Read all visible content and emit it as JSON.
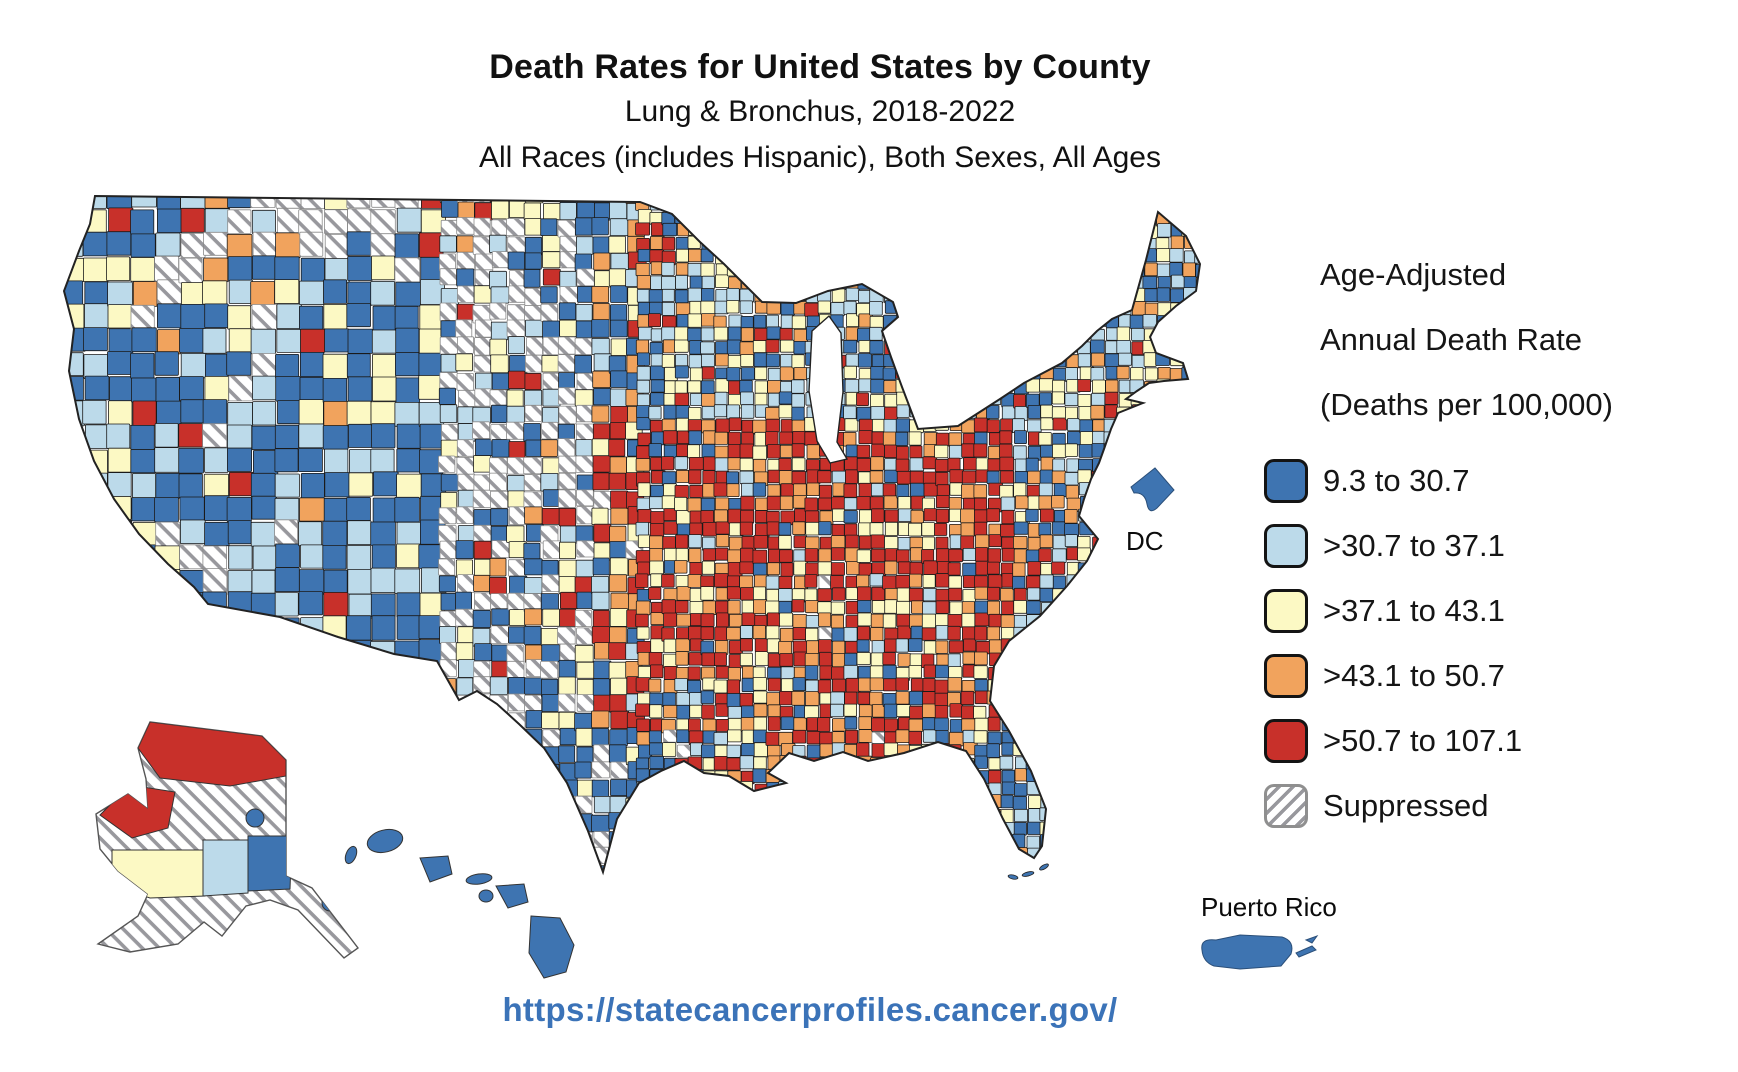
{
  "title": "Death Rates for United States by County",
  "subtitle1": "Lung & Bronchus, 2018-2022",
  "subtitle2": "All Races (includes Hispanic), Both Sexes, All Ages",
  "source_url": "https://statecancerprofiles.cancer.gov/",
  "labels": {
    "dc": "DC",
    "puerto_rico": "Puerto Rico"
  },
  "legend": {
    "heading_lines": [
      "Age-Adjusted",
      "Annual Death Rate",
      "(Deaths per 100,000)"
    ],
    "classes": [
      {
        "id": "db",
        "label": "9.3 to 30.7",
        "color": "#3E74B1"
      },
      {
        "id": "lb",
        "label": ">30.7 to 37.1",
        "color": "#BCDAEA"
      },
      {
        "id": "ye",
        "label": ">37.1 to 43.1",
        "color": "#FCF9C4"
      },
      {
        "id": "or",
        "label": ">43.1 to 50.7",
        "color": "#F1A35D"
      },
      {
        "id": "re",
        "label": ">50.7 to 107.1",
        "color": "#C8302A"
      },
      {
        "id": "ha",
        "label": "Suppressed",
        "pattern": "diagonal-hatch",
        "color": "#FFFFFF",
        "hatch_color": "#98989D"
      }
    ]
  },
  "chart_data": {
    "type": "choropleth_map",
    "geography": "United States counties (incl. Alaska, Hawaii, DC, Puerto Rico)",
    "measure": "Age-Adjusted Annual Death Rate (Deaths per 100,000)",
    "cancer_site": "Lung & Bronchus",
    "years": "2018-2022",
    "population": "All Races (includes Hispanic), Both Sexes, All Ages",
    "bins": [
      "9.3 to 30.7",
      ">30.7 to 37.1",
      ">37.1 to 43.1",
      ">43.1 to 50.7",
      ">50.7 to 107.1",
      "Suppressed"
    ],
    "notable_features": [
      "Highest (red) rates cluster in Appalachia, Kentucky, Tennessee and the Mississippi Delta / Deep South",
      "Lowest (dark blue) rates across the Mountain West, Southwest, coastal California, south Texas, Florida peninsula, Hawaii and Puerto Rico",
      "Suppressed (hatched) counties concentrated in the Great Plains from the Dakotas to west Texas, Montana and interior Alaska",
      "Alaska North Slope and northwest red; DC shown dark blue"
    ],
    "map_model": {
      "regions": [
        {
          "name": "montana-dakotas-hatch",
          "u": [
            0.17,
            0.37
          ],
          "v": [
            0.0,
            0.1
          ],
          "weights": {
            "ha": 0.42,
            "db": 0.25,
            "lb": 0.12,
            "ye": 0.13,
            "or": 0.04,
            "re": 0.04
          }
        },
        {
          "name": "plains-hatch-band",
          "u": [
            0.33,
            0.46
          ],
          "v": [
            0.0,
            0.56
          ],
          "weights": {
            "ha": 0.4,
            "db": 0.24,
            "lb": 0.12,
            "ye": 0.16,
            "or": 0.04,
            "re": 0.04
          }
        },
        {
          "name": "west-texas-hatch",
          "u": [
            0.33,
            0.47
          ],
          "v": [
            0.56,
            0.78
          ],
          "weights": {
            "ha": 0.34,
            "db": 0.28,
            "lb": 0.1,
            "ye": 0.16,
            "or": 0.06,
            "re": 0.06
          }
        },
        {
          "name": "south-texas-blue",
          "u": [
            0.4,
            0.55
          ],
          "v": [
            0.78,
            1.01
          ],
          "weights": {
            "db": 0.5,
            "ha": 0.14,
            "lb": 0.1,
            "ye": 0.12,
            "or": 0.07,
            "re": 0.07
          }
        },
        {
          "name": "west-blue",
          "u": [
            0.0,
            0.33
          ],
          "v": [
            0.0,
            1.01
          ],
          "weights": {
            "db": 0.45,
            "lb": 0.27,
            "ye": 0.16,
            "ha": 0.07,
            "or": 0.03,
            "re": 0.02
          }
        },
        {
          "name": "appalachia-core-red",
          "u": [
            0.6,
            0.83
          ],
          "v": [
            0.33,
            0.56
          ],
          "weights": {
            "re": 0.52,
            "or": 0.24,
            "ye": 0.12,
            "lb": 0.06,
            "db": 0.06
          }
        },
        {
          "name": "florida-blue",
          "u": [
            0.74,
            0.9
          ],
          "v": [
            0.76,
            1.01
          ],
          "weights": {
            "db": 0.42,
            "lb": 0.18,
            "ye": 0.15,
            "or": 0.12,
            "re": 0.13
          }
        },
        {
          "name": "south-red-belt",
          "u": [
            0.46,
            0.83
          ],
          "v": [
            0.33,
            0.8
          ],
          "weights": {
            "re": 0.36,
            "or": 0.27,
            "ye": 0.17,
            "lb": 0.09,
            "db": 0.09,
            "ha": 0.02
          }
        },
        {
          "name": "gulf-south",
          "u": [
            0.46,
            0.74
          ],
          "v": [
            0.8,
            1.01
          ],
          "weights": {
            "re": 0.22,
            "or": 0.25,
            "ye": 0.2,
            "db": 0.18,
            "lb": 0.15
          }
        },
        {
          "name": "southeast-coast",
          "u": [
            0.72,
            0.95
          ],
          "v": [
            0.42,
            0.76
          ],
          "weights": {
            "db": 0.28,
            "lb": 0.2,
            "or": 0.2,
            "ye": 0.15,
            "re": 0.17
          }
        },
        {
          "name": "northeast-mix",
          "u": [
            0.74,
            1.01
          ],
          "v": [
            0.0,
            0.42
          ],
          "weights": {
            "lb": 0.3,
            "db": 0.26,
            "ye": 0.24,
            "or": 0.14,
            "re": 0.06
          }
        },
        {
          "name": "upper-midwest",
          "u": [
            0.33,
            0.74
          ],
          "v": [
            0.0,
            0.33
          ],
          "weights": {
            "db": 0.28,
            "lb": 0.27,
            "ye": 0.2,
            "or": 0.15,
            "re": 0.1
          }
        }
      ],
      "default_weights": {
        "ye": 0.3,
        "or": 0.3,
        "re": 0.2,
        "lb": 0.1,
        "db": 0.1
      }
    }
  }
}
